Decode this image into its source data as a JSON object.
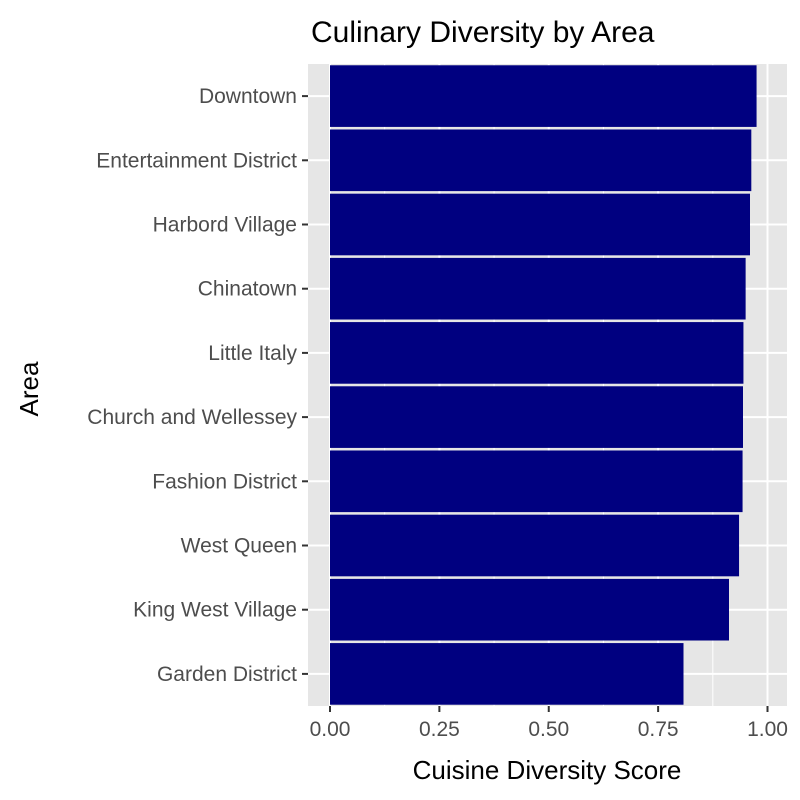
{
  "colors": {
    "bar": "#000080",
    "panel": "#e6e6e6",
    "grid": "#ffffff",
    "text": "#000000",
    "tick_text": "#4d4d4d",
    "tick_mark": "#333333"
  },
  "chart_data": {
    "type": "bar",
    "orientation": "horizontal",
    "title": "Culinary Diversity by Area",
    "xlabel": "Cuisine Diversity Score",
    "ylabel": "Area",
    "xlim": [
      0,
      1
    ],
    "xticks": [
      "0.00",
      "0.25",
      "0.50",
      "0.75",
      "1.00"
    ],
    "grid": true,
    "categories": [
      "Downtown",
      "Entertainment District",
      "Harbord Village",
      "Chinatown",
      "Little Italy",
      "Church and Wellessey",
      "Fashion District",
      "West Queen",
      "King West Village",
      "Garden District"
    ],
    "values": [
      0.975,
      0.963,
      0.96,
      0.95,
      0.945,
      0.944,
      0.943,
      0.935,
      0.912,
      0.808
    ]
  }
}
